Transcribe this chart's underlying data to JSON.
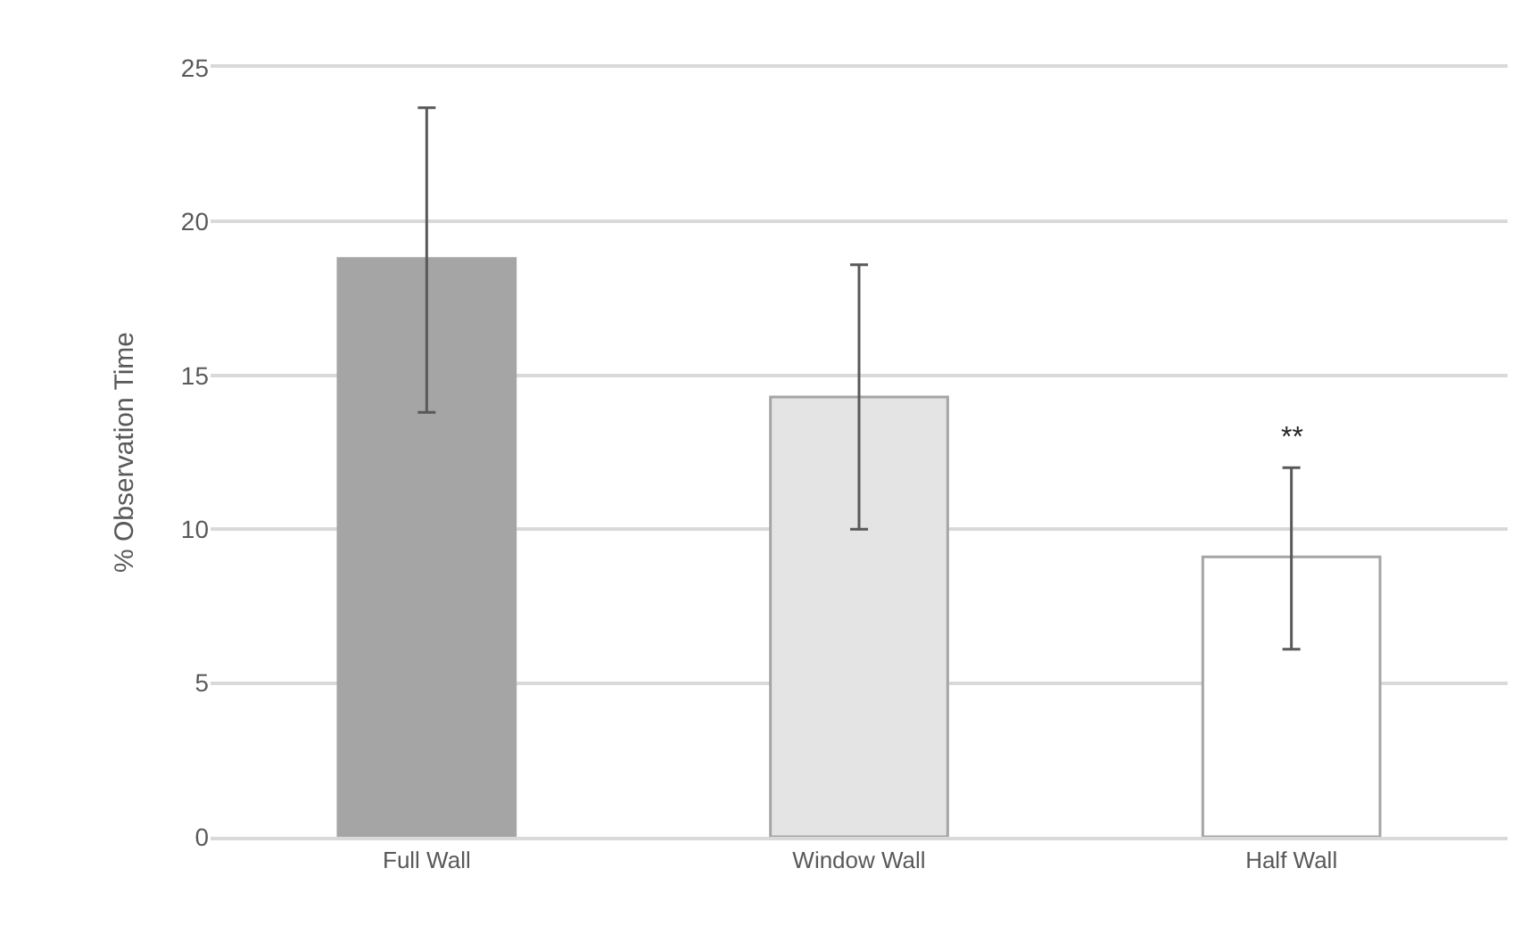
{
  "chart_data": {
    "type": "bar",
    "ylabel": "% Observation Time",
    "categories": [
      "Full Wall",
      "Window Wall",
      "Half Wall"
    ],
    "values": [
      18.8,
      14.3,
      9.1
    ],
    "errors": [
      [
        13.8,
        23.7
      ],
      [
        10.0,
        18.6
      ],
      [
        6.1,
        12.0
      ]
    ],
    "colors": [
      "#a5a5a5",
      "#e4e4e4",
      "#ffffff"
    ],
    "ylim": [
      0,
      25
    ],
    "yticks": [
      0,
      5,
      10,
      15,
      20,
      25
    ],
    "grid": "y",
    "annotations": [
      "**"
    ]
  }
}
